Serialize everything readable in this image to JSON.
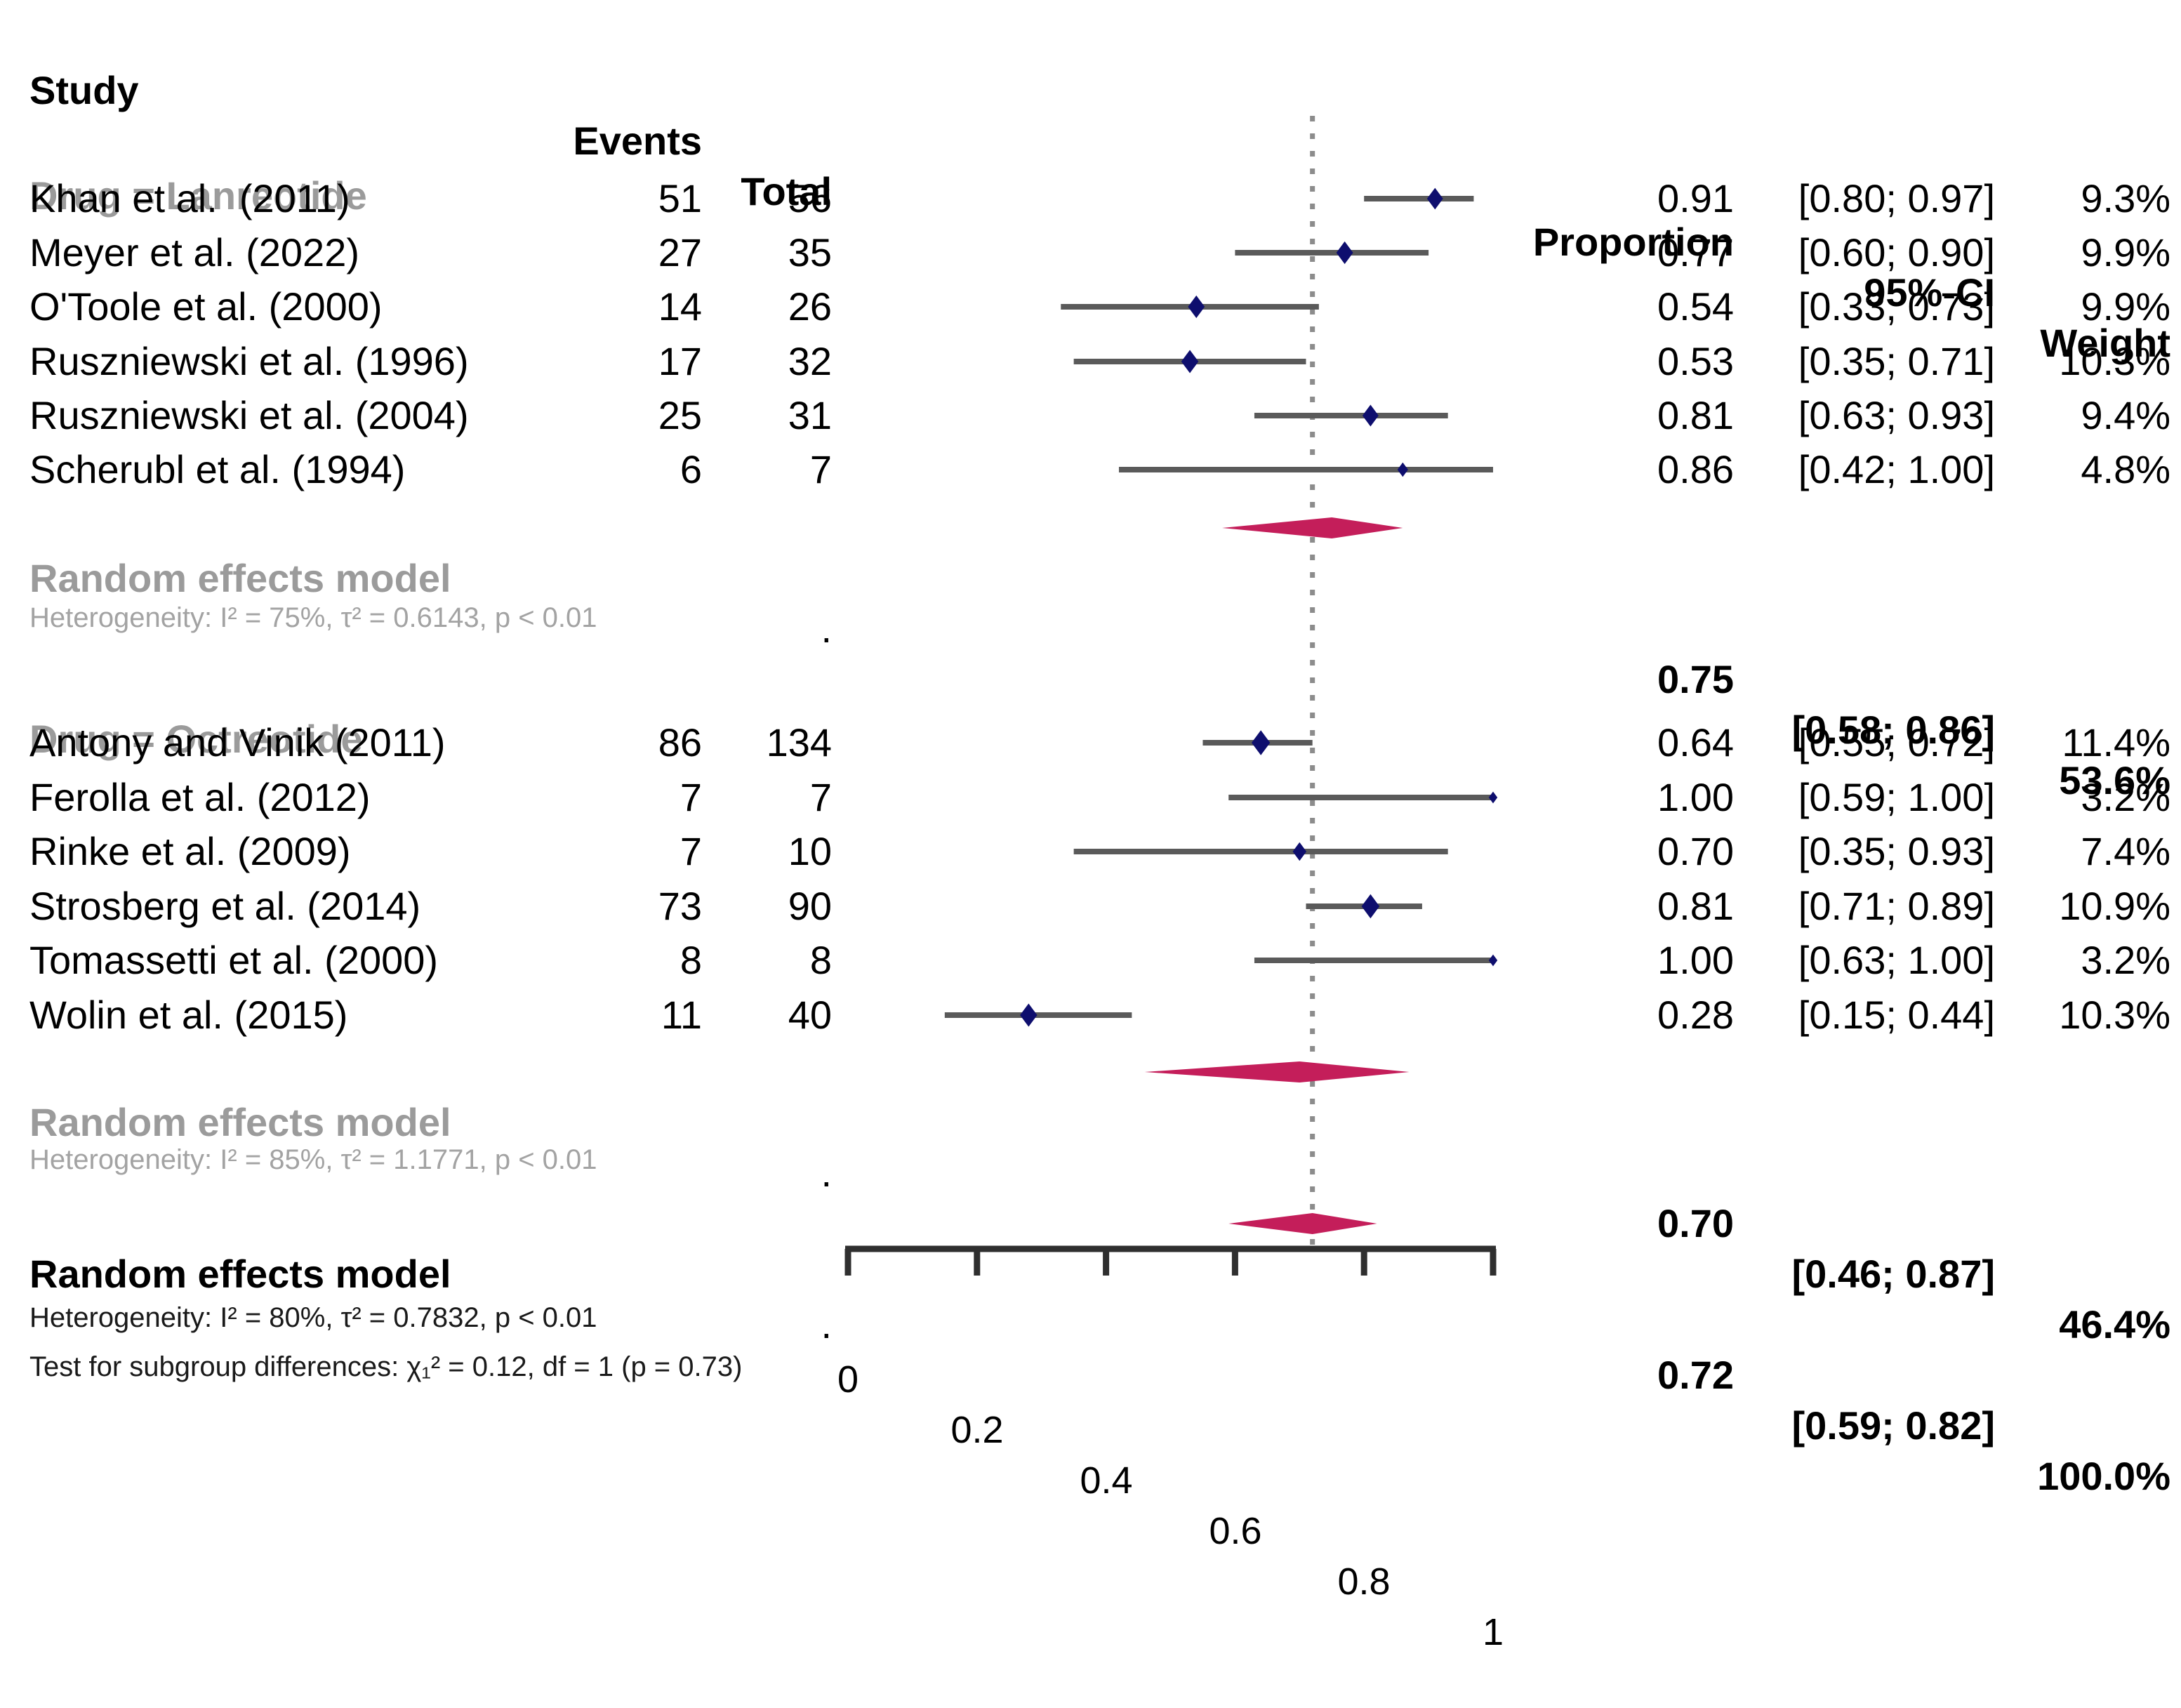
{
  "chart_data": {
    "type": "forest",
    "header": {
      "study": "Study",
      "events": "Events",
      "total": "Total",
      "proportion": "Proportion",
      "ci": "95%-CI",
      "weight": "Weight"
    },
    "axis": {
      "min": 0,
      "max": 1,
      "tick_values": [
        0,
        0.2,
        0.4,
        0.6,
        0.8,
        1
      ],
      "tick_labels": [
        "0",
        "0.2",
        "0.4",
        "0.6",
        "0.8",
        "1"
      ]
    },
    "reference_line_value": 0.72,
    "groups": [
      {
        "label": "Drug = Lanreotide",
        "studies": [
          {
            "study": "Khan et al.  (2011)",
            "events": "51",
            "total": "56",
            "proportion": "0.91",
            "proportion_value": 0.91,
            "ci": "[0.80; 0.97]",
            "ci_low": 0.8,
            "ci_high": 0.97,
            "weight": "9.3%",
            "weight_value": 9.3
          },
          {
            "study": "Meyer et al. (2022)",
            "events": "27",
            "total": "35",
            "proportion": "0.77",
            "proportion_value": 0.77,
            "ci": "[0.60; 0.90]",
            "ci_low": 0.6,
            "ci_high": 0.9,
            "weight": "9.9%",
            "weight_value": 9.9
          },
          {
            "study": "O'Toole et al. (2000)",
            "events": "14",
            "total": "26",
            "proportion": "0.54",
            "proportion_value": 0.54,
            "ci": "[0.33; 0.73]",
            "ci_low": 0.33,
            "ci_high": 0.73,
            "weight": "9.9%",
            "weight_value": 9.9
          },
          {
            "study": "Ruszniewski et al. (1996)",
            "events": "17",
            "total": "32",
            "proportion": "0.53",
            "proportion_value": 0.53,
            "ci": "[0.35; 0.71]",
            "ci_low": 0.35,
            "ci_high": 0.71,
            "weight": "10.3%",
            "weight_value": 10.3
          },
          {
            "study": "Ruszniewski et al. (2004)",
            "events": "25",
            "total": "31",
            "proportion": "0.81",
            "proportion_value": 0.81,
            "ci": "[0.63; 0.93]",
            "ci_low": 0.63,
            "ci_high": 0.93,
            "weight": "9.4%",
            "weight_value": 9.4
          },
          {
            "study": "Scherubl et al. (1994)",
            "events": "6",
            "total": "7",
            "proportion": "0.86",
            "proportion_value": 0.86,
            "ci": "[0.42; 1.00]",
            "ci_low": 0.42,
            "ci_high": 1.0,
            "weight": "4.8%",
            "weight_value": 4.8
          }
        ],
        "pooled": {
          "label": "Random effects model",
          "total_dot": ".",
          "proportion": "0.75",
          "proportion_value": 0.75,
          "ci": "[0.58; 0.86]",
          "ci_low": 0.58,
          "ci_high": 0.86,
          "weight": "53.6%"
        },
        "heterogeneity": "Heterogeneity: I² = 75%, τ² = 0.6143, p < 0.01"
      },
      {
        "label": "Drug = Octreotide",
        "studies": [
          {
            "study": "Antony and Vinik (2011)",
            "events": "86",
            "total": "134",
            "proportion": "0.64",
            "proportion_value": 0.64,
            "ci": "[0.55; 0.72]",
            "ci_low": 0.55,
            "ci_high": 0.72,
            "weight": "11.4%",
            "weight_value": 11.4
          },
          {
            "study": "Ferolla et al. (2012)",
            "events": "7",
            "total": "7",
            "proportion": "1.00",
            "proportion_value": 1.0,
            "ci": "[0.59; 1.00]",
            "ci_low": 0.59,
            "ci_high": 1.0,
            "weight": "3.2%",
            "weight_value": 3.2
          },
          {
            "study": "Rinke et al. (2009)",
            "events": "7",
            "total": "10",
            "proportion": "0.70",
            "proportion_value": 0.7,
            "ci": "[0.35; 0.93]",
            "ci_low": 0.35,
            "ci_high": 0.93,
            "weight": "7.4%",
            "weight_value": 7.4
          },
          {
            "study": "Strosberg et al. (2014)",
            "events": "73",
            "total": "90",
            "proportion": "0.81",
            "proportion_value": 0.81,
            "ci": "[0.71; 0.89]",
            "ci_low": 0.71,
            "ci_high": 0.89,
            "weight": "10.9%",
            "weight_value": 10.9
          },
          {
            "study": "Tomassetti et al. (2000)",
            "events": "8",
            "total": "8",
            "proportion": "1.00",
            "proportion_value": 1.0,
            "ci": "[0.63; 1.00]",
            "ci_low": 0.63,
            "ci_high": 1.0,
            "weight": "3.2%",
            "weight_value": 3.2
          },
          {
            "study": "Wolin et al. (2015)",
            "events": "11",
            "total": "40",
            "proportion": "0.28",
            "proportion_value": 0.28,
            "ci": "[0.15; 0.44]",
            "ci_low": 0.15,
            "ci_high": 0.44,
            "weight": "10.3%",
            "weight_value": 10.3
          }
        ],
        "pooled": {
          "label": "Random effects model",
          "total_dot": ".",
          "proportion": "0.70",
          "proportion_value": 0.7,
          "ci": "[0.46; 0.87]",
          "ci_low": 0.46,
          "ci_high": 0.87,
          "weight": "46.4%"
        },
        "heterogeneity": "Heterogeneity: I² = 85%, τ² = 1.1771, p < 0.01"
      }
    ],
    "overall": {
      "label": "Random effects model",
      "total_dot": ".",
      "proportion": "0.72",
      "proportion_value": 0.72,
      "ci": "[0.59; 0.82]",
      "ci_low": 0.59,
      "ci_high": 0.82,
      "weight": "100.0%"
    },
    "overall_heterogeneity": "Heterogeneity: I² = 80%, τ² = 0.7832, p < 0.01",
    "subgroup_test": "Test for subgroup differences: χ₁² = 0.12, df = 1 (p = 0.73)",
    "colors": {
      "diamond": "#C41E5A",
      "marker": "#0E0E6E",
      "ci_line": "#5A5A5A",
      "axis": "#2F2F2F",
      "reference_line": "#8C8C8C",
      "subgroup_text": "#9B9B9B",
      "heterogeneity_text": "#A3A3A3",
      "text": "#000000"
    }
  }
}
